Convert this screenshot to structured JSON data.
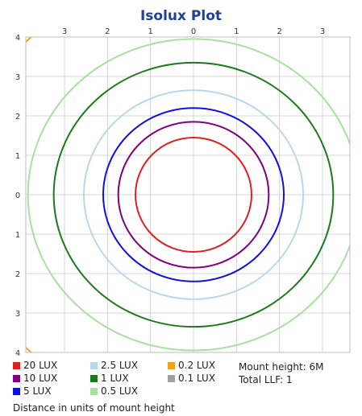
{
  "chart_data": {
    "type": "isolux_contour",
    "title": "Isolux Plot",
    "x_ticks": [
      "3",
      "2",
      "1",
      "0",
      "1",
      "2",
      "3"
    ],
    "y_ticks": [
      "4",
      "3",
      "2",
      "1",
      "0",
      "1",
      "2",
      "3",
      "4"
    ],
    "xlim": [
      -3.8,
      3.8
    ],
    "ylim": [
      -4,
      4
    ],
    "grid": true,
    "contours": [
      {
        "label": "20 LUX",
        "color": "#e02020",
        "rx": 1.35,
        "ry": 1.45
      },
      {
        "label": "10 LUX",
        "color": "#800080",
        "rx": 1.75,
        "ry": 1.85
      },
      {
        "label": "5 LUX",
        "color": "#1010e0",
        "rx": 2.1,
        "ry": 2.2
      },
      {
        "label": "2.5 LUX",
        "color": "#b8d8ea",
        "rx": 2.55,
        "ry": 2.65
      },
      {
        "label": "1 LUX",
        "color": "#1a7a1a",
        "rx": 3.25,
        "ry": 3.35
      },
      {
        "label": "0.5 LUX",
        "color": "#a8e0a0",
        "rx": 3.85,
        "ry": 3.95
      },
      {
        "label": "0.2 LUX",
        "color": "#f0a020",
        "rx": 5.5,
        "ry": 5.5
      },
      {
        "label": "0.1 LUX",
        "color": "#a0a0a0",
        "rx": 0,
        "ry": 0
      }
    ],
    "legend_position": "bottom"
  },
  "info": {
    "mount_height": "Mount height: 6M",
    "total_llf": "Total LLF: 1"
  },
  "footer": "Distance in units of mount height"
}
